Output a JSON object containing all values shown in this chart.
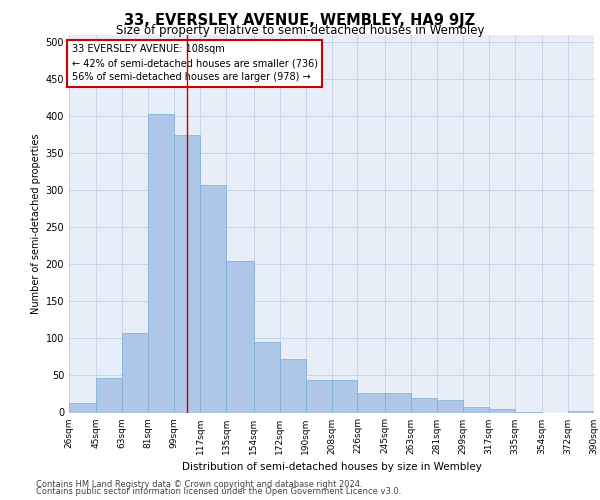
{
  "title": "33, EVERSLEY AVENUE, WEMBLEY, HA9 9JZ",
  "subtitle": "Size of property relative to semi-detached houses in Wembley",
  "xlabel": "Distribution of semi-detached houses by size in Wembley",
  "ylabel": "Number of semi-detached properties",
  "footer_line1": "Contains HM Land Registry data © Crown copyright and database right 2024.",
  "footer_line2": "Contains public sector information licensed under the Open Government Licence v3.0.",
  "annotation_line1": "33 EVERSLEY AVENUE: 108sqm",
  "annotation_line2": "← 42% of semi-detached houses are smaller (736)",
  "annotation_line3": "56% of semi-detached houses are larger (978) →",
  "bar_left_edges": [
    26,
    45,
    63,
    81,
    99,
    117,
    135,
    154,
    172,
    190,
    208,
    226,
    245,
    263,
    281,
    299,
    317,
    335,
    354,
    372
  ],
  "bar_widths": [
    19,
    18,
    18,
    18,
    18,
    18,
    19,
    18,
    18,
    18,
    18,
    19,
    18,
    18,
    18,
    18,
    18,
    19,
    18,
    18
  ],
  "bar_heights": [
    13,
    47,
    108,
    403,
    375,
    307,
    205,
    95,
    72,
    44,
    44,
    26,
    26,
    20,
    17,
    7,
    5,
    1,
    0,
    2
  ],
  "tick_labels": [
    "26sqm",
    "45sqm",
    "63sqm",
    "81sqm",
    "99sqm",
    "117sqm",
    "135sqm",
    "154sqm",
    "172sqm",
    "190sqm",
    "208sqm",
    "226sqm",
    "245sqm",
    "263sqm",
    "281sqm",
    "299sqm",
    "317sqm",
    "335sqm",
    "354sqm",
    "372sqm",
    "390sqm"
  ],
  "bar_color": "#aec6e8",
  "bar_edge_color": "#7aafd4",
  "grid_color": "#c8d4e8",
  "background_color": "#e8eef8",
  "vline_color": "#cc0000",
  "vline_x": 108,
  "annotation_box_color": "#cc0000",
  "ylim": [
    0,
    510
  ],
  "yticks": [
    0,
    50,
    100,
    150,
    200,
    250,
    300,
    350,
    400,
    450,
    500
  ],
  "title_fontsize": 10.5,
  "subtitle_fontsize": 8.5,
  "ylabel_fontsize": 7,
  "xlabel_fontsize": 7.5,
  "tick_fontsize": 6.5,
  "ytick_fontsize": 7,
  "annotation_fontsize": 7,
  "footer_fontsize": 6
}
